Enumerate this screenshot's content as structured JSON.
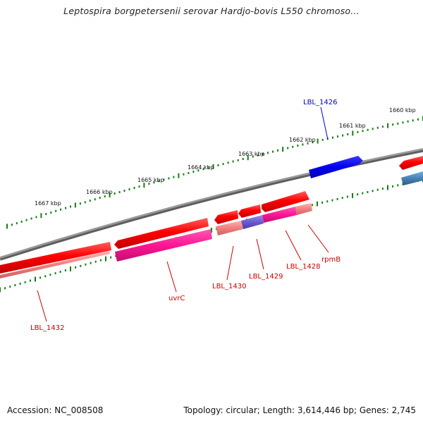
{
  "title": "Leptospira borgpetersenii serovar Hardjo-bovis L550 chromoso...",
  "footer": {
    "accession": "Accession: NC_008508",
    "info": "Topology: circular; Length: 3,614,446 bp; Genes: 2,745"
  },
  "kbp_labels": [
    "1660 kbp",
    "1661 kbp",
    "1662 kbp",
    "1663 kbp",
    "1664 kbp",
    "1665 kbp",
    "1666 kbp",
    "1667 kbp"
  ],
  "gene_labels": [
    {
      "text": "LBL_1426",
      "color": "#0000cc"
    },
    {
      "text": "LBL_1428",
      "color": "#cc0000"
    },
    {
      "text": "rpmB",
      "color": "#cc0000"
    },
    {
      "text": "LBL_1429",
      "color": "#cc0000"
    },
    {
      "text": "LBL_1430",
      "color": "#cc0000"
    },
    {
      "text": "uvrC",
      "color": "#cc0000"
    },
    {
      "text": "LBL_1432",
      "color": "#cc0000"
    }
  ],
  "colors": {
    "backbone": "#808080",
    "tick": "#1a7a1a",
    "gene_forward": "#ff0000",
    "gene_forward_blue": "#0000ee",
    "cds_magenta": "#ff1493",
    "cds_pink": "#f08080",
    "cds_purple": "#6a5acd",
    "cds_steel": "#4682b4"
  }
}
